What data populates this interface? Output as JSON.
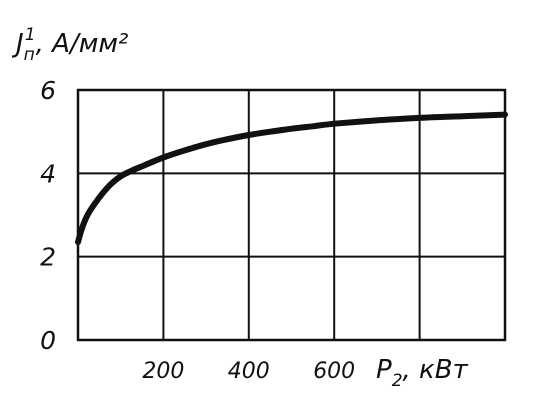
{
  "chart_data": {
    "type": "line",
    "ylabel": {
      "symbol": "J",
      "sub": "п",
      "sup": "1",
      "unit": ", А/мм²"
    },
    "xlabel": {
      "symbol": "P",
      "sub": "2",
      "unit": ", кВт"
    },
    "xlim": [
      0,
      1000
    ],
    "ylim": [
      0,
      6
    ],
    "x_ticks": [
      200,
      400,
      600
    ],
    "x_gridlines": [
      200,
      400,
      600,
      800
    ],
    "y_ticks": [
      0,
      2,
      4,
      6
    ],
    "y_gridlines": [
      2,
      4
    ],
    "grid": true,
    "colors": {
      "line": "#111111",
      "grid": "#111111",
      "background": "#ffffff"
    },
    "series": [
      {
        "x": [
          0,
          10,
          25,
          50,
          75,
          100,
          125,
          150,
          200,
          250,
          300,
          350,
          400,
          450,
          500,
          550,
          600,
          700,
          800,
          900,
          1000
        ],
        "y": [
          2.35,
          2.7,
          3.05,
          3.42,
          3.72,
          3.93,
          4.06,
          4.17,
          4.38,
          4.55,
          4.7,
          4.82,
          4.92,
          5.0,
          5.07,
          5.13,
          5.19,
          5.27,
          5.33,
          5.37,
          5.41
        ]
      }
    ]
  }
}
